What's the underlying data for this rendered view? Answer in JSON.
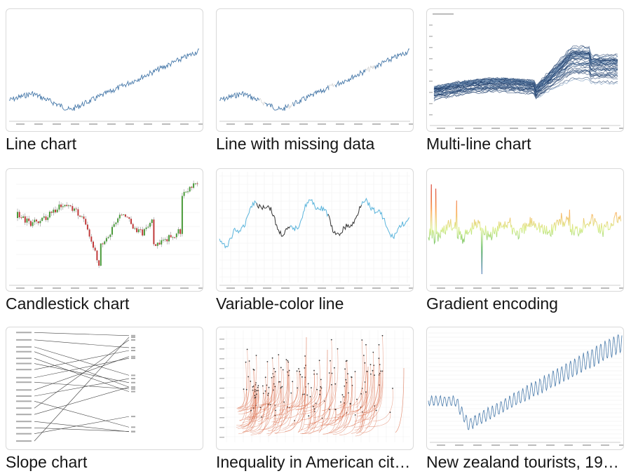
{
  "gallery": {
    "cards": [
      {
        "title": "Line chart",
        "thumb_icon": "line-chart-thumbnail"
      },
      {
        "title": "Line with missing data",
        "thumb_icon": "line-missing-data-thumbnail"
      },
      {
        "title": "Multi-line chart",
        "thumb_icon": "multi-line-chart-thumbnail"
      },
      {
        "title": "Candlestick chart",
        "thumb_icon": "candlestick-chart-thumbnail"
      },
      {
        "title": "Variable-color line",
        "thumb_icon": "variable-color-line-thumbnail"
      },
      {
        "title": "Gradient encoding",
        "thumb_icon": "gradient-encoding-thumbnail"
      },
      {
        "title": "Slope chart",
        "thumb_icon": "slope-chart-thumbnail"
      },
      {
        "title": "Inequality in American cit…",
        "thumb_icon": "inequality-chart-thumbnail"
      },
      {
        "title": "New zealand tourists, 19…",
        "thumb_icon": "nz-tourists-chart-thumbnail"
      }
    ]
  },
  "colors": {
    "line_blue": "#4a7bab",
    "dark_blue": "#1f3d6b",
    "candle_up": "#4a9a3a",
    "candle_down": "#c03a3a",
    "variable_line_blue": "#5ab4dc",
    "arc_red": "#d9643f",
    "card_border": "#d9d9d9"
  }
}
